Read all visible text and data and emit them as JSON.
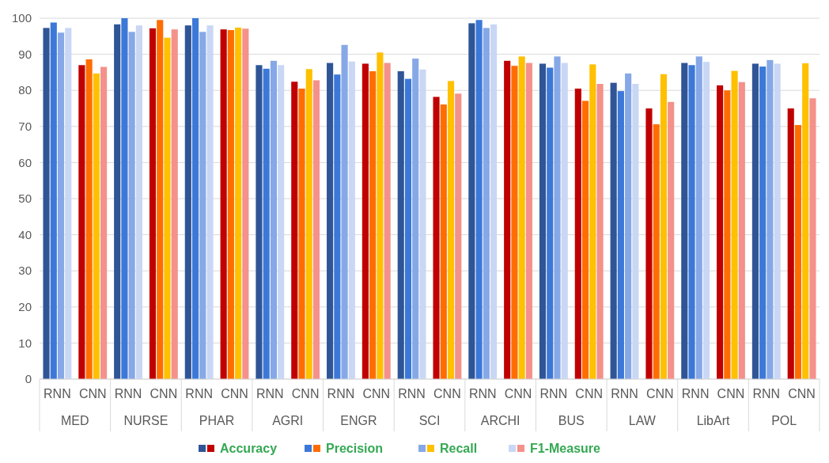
{
  "chart_data": {
    "type": "bar",
    "categories": [
      "RNN",
      "CNN",
      "RNN",
      "CNN",
      "RNN",
      "CNN",
      "RNN",
      "CNN",
      "RNN",
      "CNN",
      "RNN",
      "CNN",
      "RNN",
      "CNN",
      "RNN",
      "CNN",
      "RNN",
      "CNN",
      "RNN",
      "CNN",
      "RNN",
      "CNN"
    ],
    "annotations": [
      "MED",
      "NURSE",
      "PHAR",
      "AGRI",
      "ENGR",
      "SCI",
      "ARCHI",
      "BUS",
      "LAW",
      "LibArt",
      "POL"
    ],
    "series": [
      {
        "name": "Accuracy",
        "colors": [
          "#2f5597",
          "#c00000",
          "#2f5597",
          "#c00000",
          "#2f5597",
          "#c00000",
          "#2f5597",
          "#c00000",
          "#2f5597",
          "#c00000",
          "#2f5597",
          "#c00000",
          "#2f5597",
          "#c00000",
          "#2f5597",
          "#c00000",
          "#2f5597",
          "#c00000",
          "#2f5597",
          "#c00000",
          "#2f5597",
          "#c00000"
        ],
        "values": [
          97.3,
          87,
          98.3,
          97.2,
          98,
          96.9,
          87,
          82.4,
          87.6,
          87.4,
          85.3,
          78.2,
          98.6,
          88.2,
          87.4,
          80.5,
          82.1,
          75,
          87.6,
          81.4,
          87.4,
          75
        ]
      },
      {
        "name": "Precision",
        "colors": [
          "#3c78d8",
          "#ff6d01",
          "#3c78d8",
          "#ff6d01",
          "#3c78d8",
          "#ff6d01",
          "#3c78d8",
          "#ff6d01",
          "#3c78d8",
          "#ff6d01",
          "#3c78d8",
          "#ff6d01",
          "#3c78d8",
          "#ff6d01",
          "#3c78d8",
          "#ff6d01",
          "#3c78d8",
          "#ff6d01",
          "#3c78d8",
          "#ff6d01",
          "#3c78d8",
          "#ff6d01"
        ],
        "values": [
          98.8,
          88.6,
          100,
          99.5,
          100,
          96.7,
          86,
          80.5,
          84.4,
          85.3,
          83.2,
          76.1,
          99.5,
          86.8,
          86.3,
          77.1,
          79.8,
          70.6,
          87,
          80,
          86.6,
          70.4
        ]
      },
      {
        "name": "Recall",
        "colors": [
          "#86a8e7",
          "#ffc000",
          "#86a8e7",
          "#ffc000",
          "#86a8e7",
          "#ffc000",
          "#86a8e7",
          "#ffc000",
          "#86a8e7",
          "#ffc000",
          "#86a8e7",
          "#ffc000",
          "#86a8e7",
          "#ffc000",
          "#86a8e7",
          "#ffc000",
          "#86a8e7",
          "#ffc000",
          "#86a8e7",
          "#ffc000",
          "#86a8e7",
          "#ffc000"
        ],
        "values": [
          96,
          84.7,
          96.2,
          94.6,
          96.2,
          97.4,
          88.2,
          85.9,
          92.6,
          90.5,
          88.8,
          82.6,
          97.3,
          89.4,
          89.4,
          87.2,
          84.7,
          84.5,
          89.4,
          85.4,
          88.4,
          87.5
        ]
      },
      {
        "name": "F1-Measure",
        "colors": [
          "#c9d7f5",
          "#f4918a",
          "#c9d7f5",
          "#f4918a",
          "#c9d7f5",
          "#f4918a",
          "#c9d7f5",
          "#f4918a",
          "#c9d7f5",
          "#f4918a",
          "#c9d7f5",
          "#f4918a",
          "#c9d7f5",
          "#f4918a",
          "#c9d7f5",
          "#f4918a",
          "#c9d7f5",
          "#f4918a",
          "#c9d7f5",
          "#f4918a",
          "#c9d7f5",
          "#f4918a"
        ],
        "values": [
          97.3,
          86.5,
          98,
          96.9,
          98,
          97.1,
          87,
          82.8,
          88,
          87.6,
          85.8,
          79.1,
          98.3,
          87.6,
          87.6,
          81.8,
          81.8,
          76.8,
          87.9,
          82.3,
          87.4,
          77.8
        ]
      }
    ],
    "ylim": [
      0,
      100
    ],
    "yticks": [
      0,
      10,
      20,
      30,
      40,
      50,
      60,
      70,
      80,
      90,
      100
    ],
    "grid": "y",
    "legend": "bottom"
  }
}
